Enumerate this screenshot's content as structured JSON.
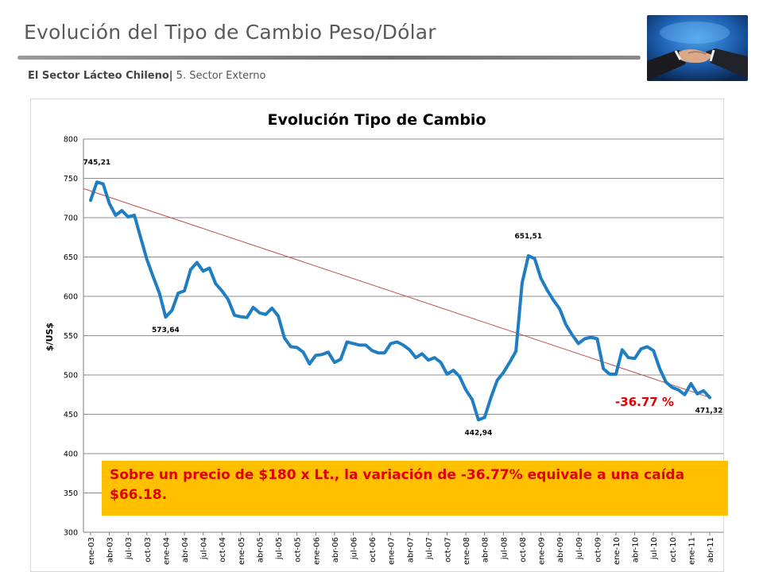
{
  "header": {
    "title": "Evolución del Tipo de Cambio Peso/Dólar",
    "subtitle_bold": "El Sector Lácteo Chileno|",
    "subtitle_rest": " 5. Sector Externo"
  },
  "callout": {
    "text": "Sobre un precio de $180  x  Lt., la variación de -36.77% equivale a una caída $66.18."
  },
  "colors": {
    "series": "#1f7dc1",
    "trend": "#c0504d",
    "callout_bg": "#ffc000",
    "callout_text": "#e00000",
    "percent_label": "#e00000"
  },
  "chart_data": {
    "type": "line",
    "title": "Evolución Tipo de Cambio",
    "xlabel": "",
    "ylabel": "$/US$",
    "ylim": [
      300,
      800
    ],
    "yticks": [
      300,
      350,
      400,
      450,
      500,
      550,
      600,
      650,
      700,
      750,
      800
    ],
    "grid": true,
    "legend": "none",
    "xtick_labels": [
      "ene-03",
      "abr-03",
      "jul-03",
      "oct-03",
      "ene-04",
      "abr-04",
      "jul-04",
      "oct-04",
      "ene-05",
      "abr-05",
      "jul-05",
      "oct-05",
      "ene-06",
      "abr-06",
      "jul-06",
      "oct-06",
      "ene-07",
      "abr-07",
      "jul-07",
      "oct-07",
      "ene-08",
      "abr-08",
      "jul-08",
      "oct-08",
      "ene-09",
      "abr-09",
      "jul-09",
      "oct-09",
      "ene-10",
      "abr-10",
      "jul-10",
      "oct-10",
      "ene-11",
      "abr-11"
    ],
    "series": [
      {
        "values": [
          722,
          745.21,
          743,
          718,
          703,
          709,
          701,
          703,
          675,
          647,
          625,
          604,
          573.64,
          582,
          604,
          607,
          634,
          643,
          632,
          636,
          616,
          607,
          596,
          576,
          574,
          573,
          586,
          579,
          577,
          585,
          575,
          547,
          536,
          535,
          529,
          514,
          525,
          526,
          529,
          516,
          520,
          542,
          540,
          538,
          538,
          531,
          528,
          528,
          540,
          542,
          538,
          532,
          522,
          527,
          519,
          522,
          516,
          501,
          506,
          498,
          481,
          469,
          442.94,
          446,
          471,
          493,
          503,
          516,
          530,
          617,
          651.51,
          648,
          623,
          608,
          595,
          584,
          564,
          551,
          540,
          546,
          548,
          546,
          508,
          501,
          501,
          532,
          522,
          521,
          533,
          536,
          531,
          508,
          491,
          484,
          481,
          475,
          489,
          476,
          480,
          471.32
        ]
      }
    ],
    "trend": {
      "start": 737,
      "end": 471.32
    },
    "annotations": [
      {
        "text": "745,21",
        "index": 1,
        "value": 745.21,
        "position": "above"
      },
      {
        "text": "573,64",
        "index": 12,
        "value": 573.64,
        "position": "below"
      },
      {
        "text": "442,94",
        "index": 62,
        "value": 442.94,
        "position": "below"
      },
      {
        "text": "651,51",
        "index": 70,
        "value": 651.51,
        "position": "above"
      },
      {
        "text": "471,32",
        "index": 99,
        "value": 471.32,
        "position": "below"
      }
    ],
    "change_label": "-36.77 %"
  }
}
